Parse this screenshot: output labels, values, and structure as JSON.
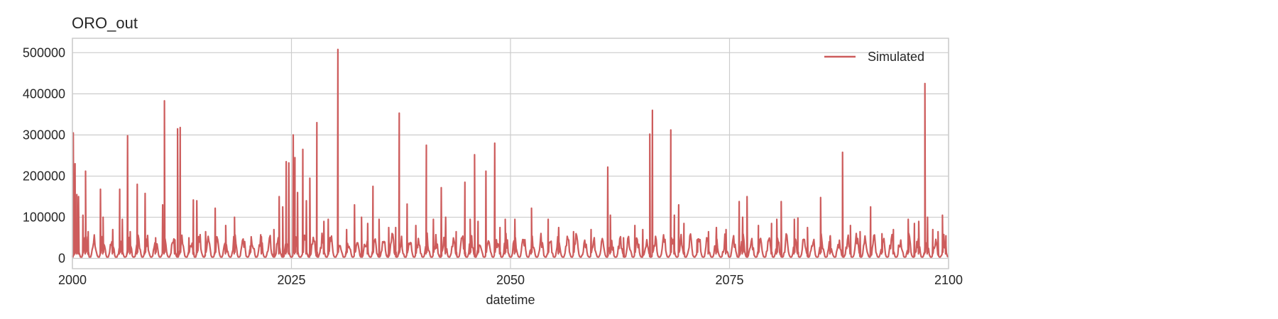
{
  "chart_data": {
    "type": "line",
    "title": "ORO_out",
    "xlabel": "datetime",
    "ylabel": "",
    "xlim": [
      2000,
      2100
    ],
    "ylim": [
      -25000,
      535000
    ],
    "x_ticks": [
      2000,
      2025,
      2050,
      2075,
      2100
    ],
    "x_tick_labels": [
      "2000",
      "2025",
      "2050",
      "2075",
      "2100"
    ],
    "y_ticks": [
      0,
      100000,
      200000,
      300000,
      400000,
      500000
    ],
    "y_tick_labels": [
      "0",
      "100000",
      "200000",
      "300000",
      "400000",
      "500000"
    ],
    "grid": true,
    "legend_position": "top-right",
    "series": [
      {
        "name": "Simulated",
        "color": "#cd5c5c",
        "baseline": {
          "from": 2000,
          "to": 2100,
          "step": 0.0833,
          "low": 3000,
          "high": 45000,
          "period_years": 1
        },
        "peaks": [
          [
            2000.1,
            305000
          ],
          [
            2000.3,
            230000
          ],
          [
            2000.5,
            155000
          ],
          [
            2000.7,
            150000
          ],
          [
            2001.2,
            105000
          ],
          [
            2001.5,
            212000
          ],
          [
            2001.8,
            65000
          ],
          [
            2003.2,
            168000
          ],
          [
            2003.5,
            100000
          ],
          [
            2004.6,
            70000
          ],
          [
            2005.4,
            168000
          ],
          [
            2005.7,
            95000
          ],
          [
            2006.3,
            298000
          ],
          [
            2006.6,
            65000
          ],
          [
            2007.4,
            180000
          ],
          [
            2008.3,
            158000
          ],
          [
            2009.5,
            50000
          ],
          [
            2010.3,
            130000
          ],
          [
            2010.5,
            383000
          ],
          [
            2011.7,
            45000
          ],
          [
            2012.0,
            315000
          ],
          [
            2012.3,
            318000
          ],
          [
            2013.3,
            50000
          ],
          [
            2013.8,
            142000
          ],
          [
            2014.2,
            140000
          ],
          [
            2015.2,
            65000
          ],
          [
            2016.3,
            122000
          ],
          [
            2017.5,
            80000
          ],
          [
            2018.5,
            100000
          ],
          [
            2020.3,
            30000
          ],
          [
            2021.6,
            35000
          ],
          [
            2023.0,
            70000
          ],
          [
            2023.6,
            150000
          ],
          [
            2024.0,
            125000
          ],
          [
            2024.4,
            235000
          ],
          [
            2024.7,
            232000
          ],
          [
            2025.2,
            300000
          ],
          [
            2025.4,
            245000
          ],
          [
            2025.7,
            160000
          ],
          [
            2026.3,
            265000
          ],
          [
            2026.7,
            140000
          ],
          [
            2027.1,
            195000
          ],
          [
            2027.9,
            330000
          ],
          [
            2028.7,
            90000
          ],
          [
            2029.2,
            95000
          ],
          [
            2030.3,
            508000
          ],
          [
            2031.3,
            70000
          ],
          [
            2032.2,
            130000
          ],
          [
            2033.0,
            100000
          ],
          [
            2033.7,
            85000
          ],
          [
            2034.3,
            175000
          ],
          [
            2035.0,
            95000
          ],
          [
            2036.1,
            75000
          ],
          [
            2036.9,
            75000
          ],
          [
            2037.3,
            353000
          ],
          [
            2038.2,
            132000
          ],
          [
            2039.2,
            80000
          ],
          [
            2040.4,
            275000
          ],
          [
            2041.2,
            95000
          ],
          [
            2042.1,
            172000
          ],
          [
            2042.6,
            100000
          ],
          [
            2043.8,
            65000
          ],
          [
            2044.8,
            185000
          ],
          [
            2045.4,
            95000
          ],
          [
            2045.9,
            252000
          ],
          [
            2046.3,
            90000
          ],
          [
            2047.2,
            212000
          ],
          [
            2048.2,
            280000
          ],
          [
            2048.8,
            75000
          ],
          [
            2049.4,
            95000
          ],
          [
            2050.5,
            95000
          ],
          [
            2052.4,
            122000
          ],
          [
            2054.3,
            95000
          ],
          [
            2055.5,
            75000
          ],
          [
            2057.2,
            65000
          ],
          [
            2059.2,
            70000
          ],
          [
            2061.1,
            222000
          ],
          [
            2061.4,
            105000
          ],
          [
            2062.9,
            50000
          ],
          [
            2064.2,
            80000
          ],
          [
            2065.1,
            70000
          ],
          [
            2065.9,
            302000
          ],
          [
            2066.2,
            360000
          ],
          [
            2068.3,
            312000
          ],
          [
            2068.7,
            105000
          ],
          [
            2069.2,
            130000
          ],
          [
            2069.8,
            85000
          ],
          [
            2071.3,
            45000
          ],
          [
            2072.6,
            65000
          ],
          [
            2073.5,
            75000
          ],
          [
            2074.6,
            70000
          ],
          [
            2076.1,
            138000
          ],
          [
            2076.5,
            100000
          ],
          [
            2077.0,
            150000
          ],
          [
            2078.3,
            80000
          ],
          [
            2079.8,
            85000
          ],
          [
            2080.4,
            95000
          ],
          [
            2080.9,
            138000
          ],
          [
            2082.4,
            95000
          ],
          [
            2082.8,
            98000
          ],
          [
            2083.9,
            75000
          ],
          [
            2085.4,
            148000
          ],
          [
            2086.5,
            55000
          ],
          [
            2087.9,
            258000
          ],
          [
            2088.8,
            80000
          ],
          [
            2089.9,
            65000
          ],
          [
            2091.1,
            125000
          ],
          [
            2092.4,
            60000
          ],
          [
            2093.7,
            70000
          ],
          [
            2095.4,
            95000
          ],
          [
            2096.1,
            85000
          ],
          [
            2096.6,
            90000
          ],
          [
            2097.3,
            425000
          ],
          [
            2097.6,
            100000
          ],
          [
            2098.2,
            70000
          ],
          [
            2098.8,
            65000
          ],
          [
            2099.3,
            105000
          ],
          [
            2099.7,
            55000
          ]
        ]
      }
    ]
  }
}
